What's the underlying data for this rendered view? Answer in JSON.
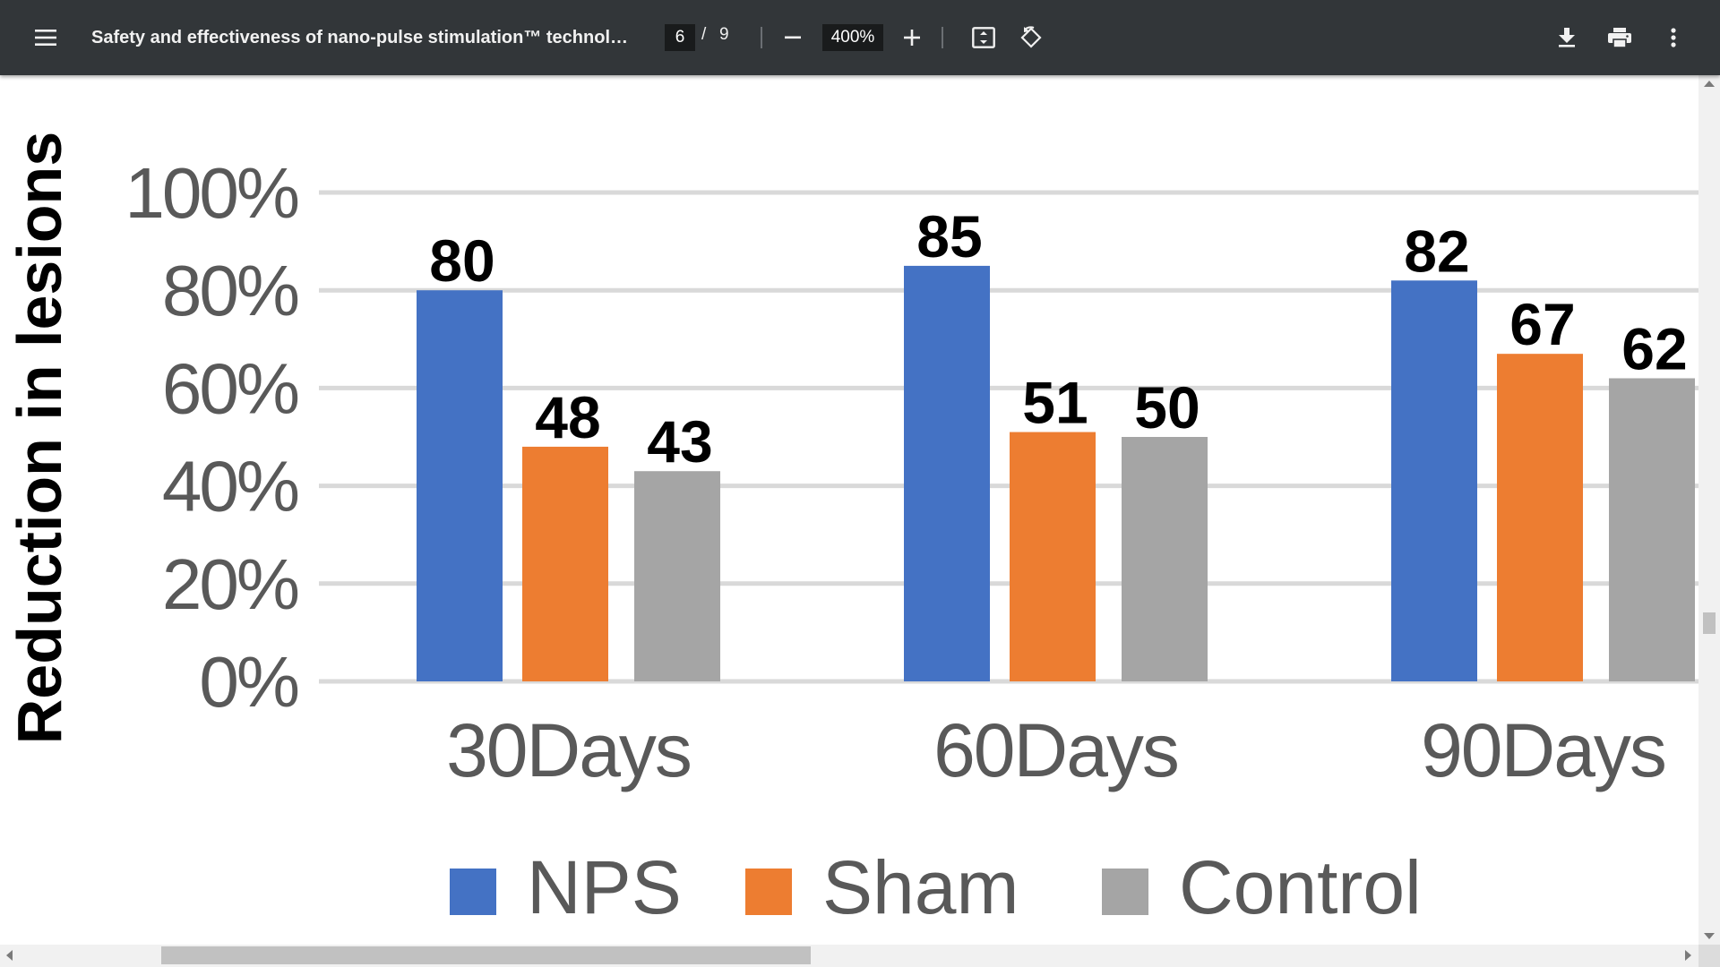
{
  "toolbar": {
    "title": "Safety and effectiveness of nano-pulse stimulation™ technolog...",
    "page_current": "6",
    "page_separator": "/",
    "page_total": "9",
    "zoom": "400%",
    "icons": [
      "menu-icon",
      "minus-icon",
      "plus-icon",
      "fit-page-icon",
      "rotate-icon",
      "download-icon",
      "print-icon",
      "more-vert-icon"
    ]
  },
  "chart_data": {
    "type": "bar",
    "ylabel": "Reduction in lesions",
    "categories": [
      "30Days",
      "60Days",
      "90Days"
    ],
    "series": [
      {
        "name": "NPS",
        "values": [
          80,
          85,
          82
        ],
        "color": "#4472c4"
      },
      {
        "name": "Sham",
        "values": [
          48,
          51,
          67
        ],
        "color": "#ed7d31"
      },
      {
        "name": "Control",
        "values": [
          43,
          50,
          62
        ],
        "color": "#a5a5a5"
      }
    ],
    "ylim": [
      0,
      100
    ],
    "yticks": [
      "0%",
      "20%",
      "40%",
      "60%",
      "80%",
      "100%"
    ],
    "grid": true,
    "legend": "bottom"
  }
}
